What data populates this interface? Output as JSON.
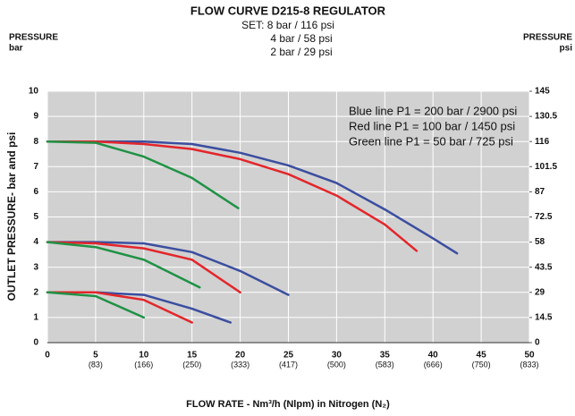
{
  "chart_data": {
    "type": "line",
    "title": "FLOW CURVE D215-8  REGULATOR",
    "subtitle": [
      "SET: 8 bar / 116 psi",
      "4 bar / 58 psi",
      "2 bar / 29 psi"
    ],
    "left_axis_header": [
      "PRESSURE",
      "bar"
    ],
    "right_axis_header": [
      "PRESSURE",
      "psi"
    ],
    "ylabel": "OUTLET PRESSURE- bar and psi",
    "xlabel": "FLOW RATE - Nm³/h (Nlpm) in Nitrogen (N₂)",
    "annotations": [
      "Blue line P1 = 200 bar / 2900 psi",
      "Red line P1 = 100 bar / 1450 psi",
      "Green line P1 = 50 bar / 725 psi"
    ],
    "xlim": [
      0,
      50
    ],
    "xticks": [
      0,
      5,
      10,
      15,
      20,
      25,
      30,
      35,
      40,
      45,
      50
    ],
    "xticks_secondary": [
      {
        "value": 5,
        "label": "(83)"
      },
      {
        "value": 10,
        "label": "(166)"
      },
      {
        "value": 15,
        "label": "(250)"
      },
      {
        "value": 20,
        "label": "(333)"
      },
      {
        "value": 25,
        "label": "(417)"
      },
      {
        "value": 30,
        "label": "(500)"
      },
      {
        "value": 35,
        "label": "(583)"
      },
      {
        "value": 40,
        "label": "(666)"
      },
      {
        "value": 45,
        "label": "(750)"
      },
      {
        "value": 50,
        "label": "(833)"
      }
    ],
    "ylim": [
      0,
      10
    ],
    "yticks": [
      0,
      1,
      2,
      3,
      4,
      5,
      6,
      7,
      8,
      9,
      10
    ],
    "y2lim": [
      0,
      145
    ],
    "y2ticks": [
      0,
      14.5,
      29,
      43.5,
      58,
      72.5,
      87,
      101.5,
      116,
      130.5,
      145
    ],
    "grid": true,
    "series": [
      {
        "color": "#3b4ea0",
        "x": [
          0,
          5,
          10,
          15,
          20,
          25,
          30,
          35,
          40,
          42.5
        ],
        "values": [
          8,
          8,
          8,
          7.9,
          7.55,
          7.05,
          6.35,
          5.3,
          4.15,
          3.55
        ]
      },
      {
        "color": "#e3262b",
        "x": [
          0,
          5,
          10,
          15,
          20,
          25,
          30,
          35,
          38.3
        ],
        "values": [
          8,
          8,
          7.9,
          7.7,
          7.3,
          6.7,
          5.85,
          4.7,
          3.65
        ]
      },
      {
        "color": "#1f9245",
        "x": [
          0,
          5,
          10,
          15,
          19.8
        ],
        "values": [
          8,
          7.95,
          7.4,
          6.55,
          5.35
        ]
      },
      {
        "color": "#3b4ea0",
        "x": [
          0,
          5,
          10,
          15,
          20,
          25
        ],
        "values": [
          4,
          4,
          3.95,
          3.6,
          2.85,
          1.9
        ]
      },
      {
        "color": "#e3262b",
        "x": [
          0,
          5,
          10,
          15,
          20
        ],
        "values": [
          4,
          3.95,
          3.75,
          3.3,
          2
        ]
      },
      {
        "color": "#1f9245",
        "x": [
          0,
          5,
          10,
          15.8
        ],
        "values": [
          4,
          3.8,
          3.3,
          2.2
        ]
      },
      {
        "color": "#3b4ea0",
        "x": [
          0,
          5,
          10,
          15,
          19
        ],
        "values": [
          2,
          2,
          1.9,
          1.35,
          0.8
        ]
      },
      {
        "color": "#e3262b",
        "x": [
          0,
          5,
          10,
          15
        ],
        "values": [
          2,
          2,
          1.7,
          0.8
        ]
      },
      {
        "color": "#1f9245",
        "x": [
          0,
          5,
          10
        ],
        "values": [
          2,
          1.85,
          1
        ]
      }
    ]
  }
}
